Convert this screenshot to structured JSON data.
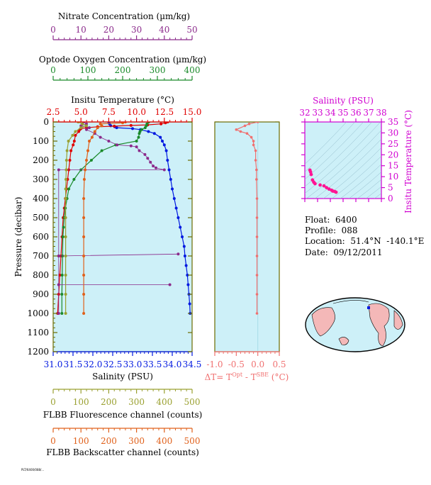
{
  "colors": {
    "nitrate": "#8b2a8b",
    "oxygen": "#1a8a2a",
    "temperature": "#e00000",
    "salinity": "#0018e0",
    "fluorescence": "#9aa030",
    "backscatter": "#e0601a",
    "delta_t": "#f07070",
    "ts_axis": "#d000d0",
    "ts_points": "#ff1493",
    "panel_bg": "#cdf0f8",
    "frame": "#6b6b00"
  },
  "axes": {
    "nitrate": {
      "label": "Nitrate Concentration (µm/kg)",
      "ticks": [
        "0",
        "10",
        "20",
        "30",
        "40",
        "50"
      ],
      "range": [
        0,
        50
      ]
    },
    "oxygen": {
      "label": "Optode Oxygen Concentration (µm/kg)",
      "ticks": [
        "0",
        "100",
        "200",
        "300",
        "400"
      ],
      "range": [
        0,
        400
      ]
    },
    "temperature": {
      "label": "Insitu Temperature (°C)",
      "ticks": [
        "2.5",
        "5.0",
        "7.5",
        "10.0",
        "12.5",
        "15.0"
      ],
      "range": [
        2.5,
        15.0
      ]
    },
    "salinity": {
      "label": "Salinity (PSU)",
      "ticks": [
        "31.0",
        "31.5",
        "32.0",
        "32.5",
        "33.0",
        "33.5",
        "34.0",
        "34.5"
      ],
      "range": [
        31.0,
        34.5
      ]
    },
    "pressure": {
      "label": "Pressure (decibar)",
      "ticks": [
        "0",
        "100",
        "200",
        "300",
        "400",
        "500",
        "600",
        "700",
        "800",
        "900",
        "1000",
        "1100",
        "1200"
      ],
      "range": [
        0,
        1200
      ]
    },
    "fluorescence": {
      "label": "FLBB Fluorescence channel (counts)",
      "ticks": [
        "0",
        "100",
        "200",
        "300",
        "400",
        "500"
      ],
      "range": [
        0,
        500
      ]
    },
    "backscatter": {
      "label": "FLBB Backscatter channel (counts)",
      "ticks": [
        "0",
        "100",
        "200",
        "300",
        "400",
        "500"
      ],
      "range": [
        0,
        500
      ]
    },
    "delta_t": {
      "label_main": "ΔT= T",
      "label_sup1": "Opt",
      "label_mid": " - T",
      "label_sup2": "SBE",
      "label_end": " (°C)",
      "ticks": [
        "-1.0",
        "-0.5",
        "0.0",
        "0.5"
      ],
      "range": [
        -1.0,
        0.5
      ]
    },
    "ts_salinity": {
      "label": "Salinity (PSU)",
      "ticks": [
        "32",
        "33",
        "34",
        "35",
        "36",
        "37",
        "38"
      ],
      "range": [
        32,
        38
      ]
    },
    "ts_temperature": {
      "label": "Insitu Temperature (°C)",
      "ticks": [
        "0",
        "5",
        "10",
        "15",
        "20",
        "25",
        "30",
        "35"
      ],
      "range": [
        0,
        35
      ]
    }
  },
  "info": {
    "float": "Float:  6400",
    "profile": "Profile:  088",
    "location": "Location:  51.4°N  -140.1°E",
    "date": "Date:  09/12/2011"
  },
  "footer": "PLT/6400/088/...",
  "chart_data": [
    {
      "type": "line",
      "panel": "profiles",
      "series": [
        {
          "name": "Salinity (PSU)",
          "axis": "salinity",
          "points": [
            [
              32.4,
              0
            ],
            [
              32.42,
              10
            ],
            [
              32.45,
              20
            ],
            [
              32.55,
              25
            ],
            [
              32.6,
              30
            ],
            [
              33.0,
              35
            ],
            [
              33.2,
              40
            ],
            [
              33.4,
              50
            ],
            [
              33.55,
              60
            ],
            [
              33.7,
              80
            ],
            [
              33.75,
              100
            ],
            [
              33.8,
              120
            ],
            [
              33.85,
              150
            ],
            [
              33.88,
              200
            ],
            [
              33.92,
              250
            ],
            [
              33.96,
              300
            ],
            [
              34.0,
              350
            ],
            [
              34.05,
              400
            ],
            [
              34.1,
              450
            ],
            [
              34.15,
              500
            ],
            [
              34.2,
              550
            ],
            [
              34.25,
              600
            ],
            [
              34.3,
              650
            ],
            [
              34.32,
              700
            ],
            [
              34.35,
              750
            ],
            [
              34.38,
              800
            ],
            [
              34.4,
              850
            ],
            [
              34.42,
              900
            ],
            [
              34.44,
              950
            ],
            [
              34.45,
              1000
            ]
          ]
        },
        {
          "name": "Insitu Temperature (°C)",
          "axis": "temperature",
          "points": [
            [
              12.8,
              0
            ],
            [
              12.6,
              5
            ],
            [
              12.2,
              10
            ],
            [
              11.0,
              15
            ],
            [
              9.5,
              18
            ],
            [
              8.0,
              22
            ],
            [
              6.5,
              25
            ],
            [
              5.5,
              30
            ],
            [
              5.0,
              35
            ],
            [
              4.9,
              40
            ],
            [
              4.8,
              50
            ],
            [
              4.5,
              70
            ],
            [
              4.4,
              100
            ],
            [
              4.3,
              120
            ],
            [
              4.1,
              150
            ],
            [
              4.0,
              200
            ],
            [
              3.9,
              250
            ],
            [
              3.8,
              300
            ],
            [
              3.7,
              350
            ],
            [
              3.6,
              400
            ],
            [
              3.5,
              450
            ],
            [
              3.4,
              500
            ],
            [
              3.3,
              600
            ],
            [
              3.2,
              700
            ],
            [
              3.1,
              800
            ],
            [
              3.0,
              900
            ],
            [
              2.9,
              1000
            ]
          ]
        },
        {
          "name": "Optode Oxygen Concentration (µm/kg)",
          "axis": "oxygen",
          "points": [
            [
              275,
              0
            ],
            [
              270,
              10
            ],
            [
              268,
              20
            ],
            [
              265,
              30
            ],
            [
              255,
              40
            ],
            [
              250,
              50
            ],
            [
              248,
              60
            ],
            [
              246,
              80
            ],
            [
              240,
              100
            ],
            [
              180,
              120
            ],
            [
              140,
              150
            ],
            [
              110,
              200
            ],
            [
              80,
              250
            ],
            [
              60,
              300
            ],
            [
              45,
              350
            ],
            [
              40,
              400
            ],
            [
              35,
              450
            ],
            [
              32,
              500
            ],
            [
              30,
              550
            ],
            [
              28,
              600
            ],
            [
              27,
              700
            ],
            [
              26,
              800
            ],
            [
              25,
              900
            ],
            [
              25,
              1000
            ]
          ]
        },
        {
          "name": "Nitrate Concentration (µm/kg)",
          "axis": "nitrate",
          "points": [
            [
              11,
              0
            ],
            [
              12,
              10
            ],
            [
              10,
              20
            ],
            [
              13,
              30
            ],
            [
              12,
              40
            ],
            [
              15,
              60
            ],
            [
              17,
              80
            ],
            [
              20,
              100
            ],
            [
              23,
              120
            ],
            [
              28,
              125
            ],
            [
              30,
              130
            ],
            [
              31,
              150
            ],
            [
              33,
              170
            ],
            [
              34,
              190
            ],
            [
              35,
              210
            ],
            [
              36,
              230
            ],
            [
              37,
              240
            ],
            [
              40,
              250
            ],
            [
              2,
              250
            ],
            [
              2,
              700
            ],
            [
              45,
              690
            ],
            [
              2,
              700
            ],
            [
              2,
              850
            ],
            [
              42,
              850
            ],
            [
              2,
              850
            ],
            [
              2,
              1000
            ]
          ]
        },
        {
          "name": "FLBB Fluorescence channel (counts)",
          "axis": "fluorescence",
          "points": [
            [
              90,
              0
            ],
            [
              105,
              10
            ],
            [
              120,
              20
            ],
            [
              100,
              30
            ],
            [
              80,
              50
            ],
            [
              70,
              70
            ],
            [
              55,
              100
            ],
            [
              50,
              150
            ],
            [
              48,
              200
            ],
            [
              47,
              250
            ],
            [
              46,
              300
            ],
            [
              45,
              350
            ],
            [
              45,
              400
            ],
            [
              45,
              500
            ],
            [
              45,
              600
            ],
            [
              45,
              700
            ],
            [
              45,
              800
            ],
            [
              45,
              900
            ],
            [
              45,
              1000
            ]
          ]
        },
        {
          "name": "FLBB Backscatter channel (counts)",
          "axis": "backscatter",
          "points": [
            [
              260,
              0
            ],
            [
              250,
              5
            ],
            [
              170,
              10
            ],
            [
              175,
              20
            ],
            [
              160,
              30
            ],
            [
              150,
              50
            ],
            [
              140,
              80
            ],
            [
              130,
              100
            ],
            [
              125,
              150
            ],
            [
              120,
              200
            ],
            [
              115,
              250
            ],
            [
              112,
              300
            ],
            [
              110,
              400
            ],
            [
              110,
              500
            ],
            [
              110,
              600
            ],
            [
              110,
              700
            ],
            [
              110,
              800
            ],
            [
              110,
              900
            ],
            [
              110,
              1000
            ]
          ]
        }
      ]
    },
    {
      "type": "line",
      "panel": "delta_t",
      "series": [
        {
          "name": "ΔT",
          "axis": "delta_t",
          "points": [
            [
              0.0,
              0
            ],
            [
              -0.2,
              10
            ],
            [
              -0.3,
              20
            ],
            [
              -0.5,
              40
            ],
            [
              -0.4,
              50
            ],
            [
              -0.25,
              60
            ],
            [
              -0.15,
              80
            ],
            [
              -0.1,
              100
            ],
            [
              -0.1,
              120
            ],
            [
              -0.05,
              150
            ],
            [
              -0.05,
              200
            ],
            [
              -0.03,
              250
            ],
            [
              -0.03,
              300
            ],
            [
              -0.02,
              400
            ],
            [
              -0.02,
              500
            ],
            [
              -0.02,
              600
            ],
            [
              -0.02,
              700
            ],
            [
              -0.02,
              800
            ],
            [
              -0.02,
              900
            ],
            [
              -0.02,
              1000
            ]
          ]
        }
      ]
    },
    {
      "type": "scatter",
      "panel": "ts",
      "series": [
        {
          "name": "T-S",
          "axis": "ts",
          "points": [
            [
              32.4,
              13
            ],
            [
              32.5,
              11
            ],
            [
              32.6,
              8.5
            ],
            [
              32.8,
              6.8
            ],
            [
              33.2,
              6.2
            ],
            [
              33.5,
              5.8
            ],
            [
              33.7,
              5.0
            ],
            [
              33.9,
              4.3
            ],
            [
              34.1,
              3.8
            ],
            [
              34.2,
              3.4
            ],
            [
              34.35,
              3.2
            ],
            [
              34.45,
              2.9
            ],
            [
              32.45,
              12.2
            ],
            [
              32.7,
              7.5
            ]
          ]
        }
      ]
    }
  ]
}
